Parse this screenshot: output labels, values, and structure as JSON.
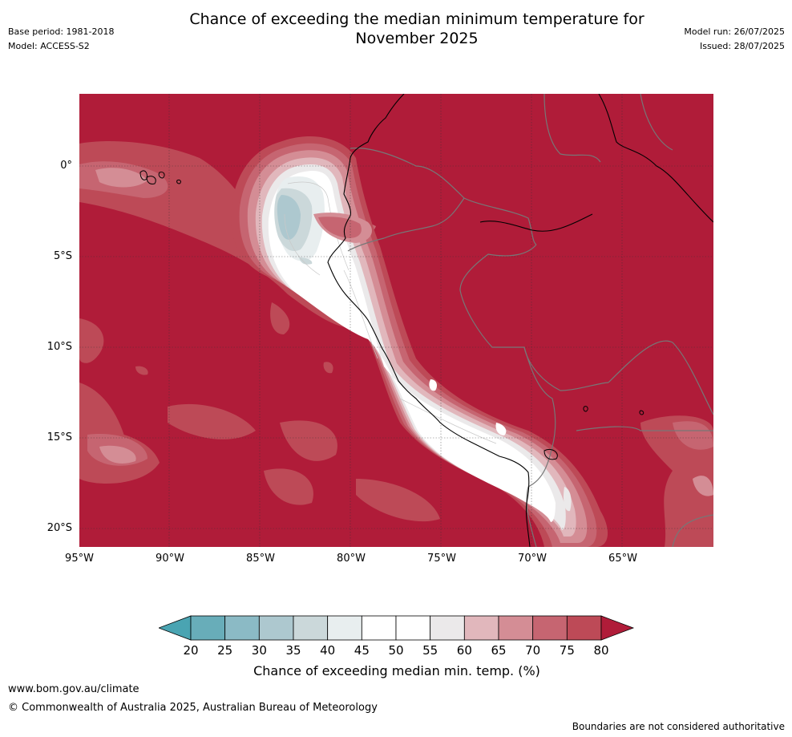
{
  "header": {
    "title_line1": "Chance of exceeding the median minimum temperature for",
    "title_line2": "November 2025",
    "base_period": "Base period: 1981-2018",
    "model": "Model: ACCESS-S2",
    "model_run": "Model run: 26/07/2025",
    "issued": "Issued: 28/07/2025"
  },
  "map": {
    "lat_labels": [
      "0°",
      "5°S",
      "10°S",
      "15°S",
      "20°S"
    ],
    "lon_labels": [
      "95°W",
      "90°W",
      "85°W",
      "80°W",
      "75°W",
      "70°W",
      "65°W"
    ],
    "background_color": "#b01c39"
  },
  "colorbar": {
    "ticks": [
      "20",
      "25",
      "30",
      "35",
      "40",
      "45",
      "50",
      "55",
      "60",
      "65",
      "70",
      "75",
      "80"
    ],
    "colors": [
      "#68adb9",
      "#8bbac5",
      "#adc8cf",
      "#cbd8da",
      "#e8eeef",
      "#ffffff",
      "#ffffff",
      "#ebe9ea",
      "#e1b7bc",
      "#d48d95",
      "#c66571",
      "#bd4a57"
    ],
    "under_color": "#4aa4b2",
    "over_color": "#b01c39",
    "label": "Chance of exceeding median min. temp. (%)"
  },
  "footer": {
    "url": "www.bom.gov.au/climate",
    "copyright": "© Commonwealth of Australia 2025, Australian Bureau of Meteorology",
    "disclaimer": "Boundaries are not considered authoritative"
  }
}
